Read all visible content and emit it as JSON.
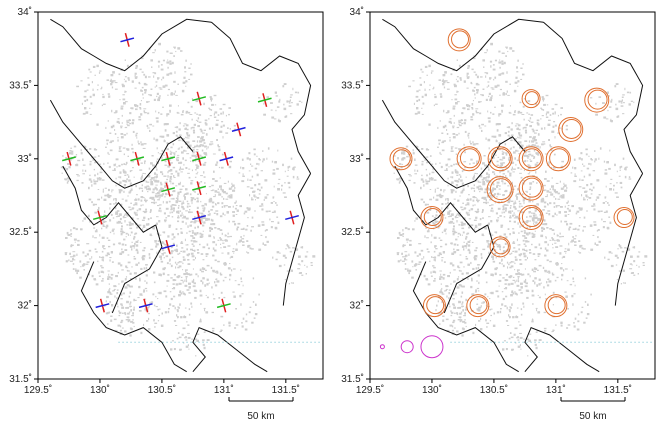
{
  "panels": [
    {
      "id": "left",
      "symbol": "cross",
      "stations": [
        {
          "lon": 130.22,
          "lat": 33.81,
          "style": "blue-red"
        },
        {
          "lon": 130.8,
          "lat": 33.41,
          "style": "green-red"
        },
        {
          "lon": 131.33,
          "lat": 33.4,
          "style": "green-red"
        },
        {
          "lon": 131.12,
          "lat": 33.2,
          "style": "blue-red"
        },
        {
          "lon": 129.75,
          "lat": 33.0,
          "style": "green-red"
        },
        {
          "lon": 130.3,
          "lat": 33.0,
          "style": "green-red"
        },
        {
          "lon": 130.55,
          "lat": 33.0,
          "style": "green-red"
        },
        {
          "lon": 130.8,
          "lat": 33.0,
          "style": "green-red"
        },
        {
          "lon": 131.02,
          "lat": 33.0,
          "style": "blue-red"
        },
        {
          "lon": 130.55,
          "lat": 32.79,
          "style": "green-red"
        },
        {
          "lon": 130.8,
          "lat": 32.8,
          "style": "green-red"
        },
        {
          "lon": 130.0,
          "lat": 32.6,
          "style": "green-red"
        },
        {
          "lon": 130.8,
          "lat": 32.6,
          "style": "blue-red"
        },
        {
          "lon": 131.55,
          "lat": 32.6,
          "style": "blue-red"
        },
        {
          "lon": 130.55,
          "lat": 32.4,
          "style": "blue-red"
        },
        {
          "lon": 130.02,
          "lat": 32.0,
          "style": "blue-red"
        },
        {
          "lon": 130.37,
          "lat": 32.0,
          "style": "blue-red"
        },
        {
          "lon": 131.0,
          "lat": 32.0,
          "style": "green-red"
        }
      ]
    },
    {
      "id": "right",
      "symbol": "rings",
      "stations": [
        {
          "lon": 130.22,
          "lat": 33.81,
          "r": 11
        },
        {
          "lon": 130.8,
          "lat": 33.41,
          "r": 9
        },
        {
          "lon": 131.33,
          "lat": 33.4,
          "r": 12
        },
        {
          "lon": 131.12,
          "lat": 33.2,
          "r": 12
        },
        {
          "lon": 129.75,
          "lat": 33.0,
          "r": 11
        },
        {
          "lon": 130.3,
          "lat": 33.0,
          "r": 12
        },
        {
          "lon": 130.55,
          "lat": 33.0,
          "r": 12
        },
        {
          "lon": 130.8,
          "lat": 33.0,
          "r": 12
        },
        {
          "lon": 131.02,
          "lat": 33.0,
          "r": 12
        },
        {
          "lon": 130.55,
          "lat": 32.79,
          "r": 13
        },
        {
          "lon": 130.8,
          "lat": 32.8,
          "r": 12
        },
        {
          "lon": 130.0,
          "lat": 32.6,
          "r": 11
        },
        {
          "lon": 130.8,
          "lat": 32.6,
          "r": 12
        },
        {
          "lon": 131.55,
          "lat": 32.6,
          "r": 10
        },
        {
          "lon": 130.55,
          "lat": 32.4,
          "r": 10
        },
        {
          "lon": 130.02,
          "lat": 32.0,
          "r": 11
        },
        {
          "lon": 130.37,
          "lat": 32.0,
          "r": 11
        },
        {
          "lon": 131.0,
          "lat": 32.0,
          "r": 11
        }
      ],
      "legend_circles": [
        {
          "lon": 129.6,
          "lat": 31.72,
          "r": 2
        },
        {
          "lon": 129.8,
          "lat": 31.72,
          "r": 6
        },
        {
          "lon": 130.0,
          "lat": 31.72,
          "r": 11
        }
      ]
    }
  ],
  "axes": {
    "lon_ticks": [
      {
        "value": 129.5,
        "label": "129.5˚"
      },
      {
        "value": 130.0,
        "label": "130˚"
      },
      {
        "value": 130.5,
        "label": "130.5˚"
      },
      {
        "value": 131.0,
        "label": "131˚"
      },
      {
        "value": 131.5,
        "label": "131.5˚"
      }
    ],
    "lat_ticks": [
      {
        "value": 31.5,
        "label": "31.5˚"
      },
      {
        "value": 32.0,
        "label": "32˚"
      },
      {
        "value": 32.5,
        "label": "32.5˚"
      },
      {
        "value": 33.0,
        "label": "33˚"
      },
      {
        "value": 33.5,
        "label": "33.5˚"
      },
      {
        "value": 34.0,
        "label": "34˚"
      }
    ],
    "lon_range": [
      129.5,
      131.8
    ],
    "lat_range": [
      31.5,
      34.0
    ]
  },
  "scale_bar": {
    "label": "50 km"
  },
  "colors": {
    "land_fill": "#cfcfcf",
    "coast": "#111111",
    "cross_red": "#e02020",
    "cross_green": "#22bb22",
    "cross_blue": "#2020dd",
    "ring": "#e07030",
    "legend_ring": "#cc33cc",
    "dotted_line": "#66bbcc"
  }
}
